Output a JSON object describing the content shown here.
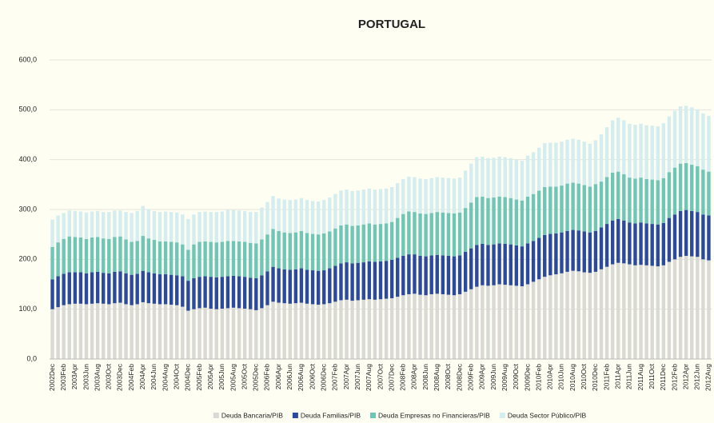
{
  "chart_data": {
    "type": "stacked_bar",
    "title": "PORTUGAL",
    "categories": [
      "2002Dec",
      null,
      "2003Feb",
      null,
      "2003Apr",
      null,
      "2003Jun",
      null,
      "2003Aug",
      null,
      "2003Oct",
      null,
      "2003Dec",
      null,
      "2004Feb",
      null,
      "2004Apr",
      null,
      "2004Jun",
      null,
      "2004Aug",
      null,
      "2004Oct",
      null,
      "2004Dec",
      null,
      "2005Feb",
      null,
      "2005Apr",
      null,
      "2005Jun",
      null,
      "2005Aug",
      null,
      "2005Oct",
      null,
      "2005Dec",
      null,
      "2006Feb",
      null,
      "2006Apr",
      null,
      "2006Jun",
      null,
      "2006Aug",
      null,
      "2006Oct",
      null,
      "2006Dec",
      null,
      "2007Feb",
      null,
      "2007Apr",
      null,
      "2007Jun",
      null,
      "2007Aug",
      null,
      "2007Oct",
      null,
      "2007Dec",
      null,
      "2008Feb",
      null,
      "2008Apr",
      null,
      "2008Jun",
      null,
      "2008Aug",
      null,
      "2008Oct",
      null,
      "2008Dec",
      null,
      "2009Feb",
      null,
      "2009Apr",
      null,
      "2009Jun",
      null,
      "2009Aug",
      null,
      "2009Oct",
      null,
      "2009Dec",
      null,
      "2010Feb",
      null,
      "2010Apr",
      null,
      "2010Jun",
      null,
      "2010Aug",
      null,
      "2010Oct",
      null,
      "2010Dec",
      null,
      "2011Feb",
      null,
      "2011Apr",
      null,
      "2011Jun",
      null,
      "2011Aug",
      null,
      "2011Oct",
      null,
      "2011Dec",
      null,
      "2012Feb",
      null,
      "2012Apr",
      null,
      "2012Jun",
      null,
      "2012Aug"
    ],
    "series": [
      {
        "name": "Deuda Bancaria/PIB",
        "color": "#d9d9d6",
        "values": [
          100,
          104,
          108,
          110,
          111,
          111,
          110,
          111,
          112,
          111,
          110,
          112,
          113,
          110,
          108,
          110,
          114,
          112,
          111,
          110,
          110,
          109,
          108,
          105,
          97,
          100,
          102,
          103,
          101,
          100,
          101,
          102,
          103,
          102,
          101,
          100,
          98,
          102,
          108,
          115,
          113,
          112,
          111,
          112,
          113,
          111,
          110,
          109,
          110,
          112,
          115,
          118,
          119,
          117,
          118,
          119,
          120,
          119,
          120,
          121,
          122,
          125,
          128,
          130,
          131,
          129,
          128,
          130,
          131,
          130,
          129,
          128,
          130,
          135,
          140,
          145,
          148,
          147,
          148,
          150,
          149,
          148,
          147,
          146,
          150,
          155,
          160,
          165,
          168,
          170,
          172,
          175,
          177,
          176,
          174,
          173,
          175,
          180,
          185,
          190,
          193,
          192,
          190,
          188,
          189,
          188,
          187,
          186,
          188,
          195,
          200,
          205,
          207,
          206,
          205,
          200,
          198
        ]
      },
      {
        "name": "Deuda Familias/PIB",
        "color": "#2b4a9e",
        "values": [
          60,
          62,
          63,
          64,
          63,
          63,
          62,
          63,
          63,
          62,
          62,
          63,
          63,
          62,
          61,
          61,
          63,
          62,
          61,
          60,
          60,
          60,
          60,
          61,
          60,
          62,
          63,
          63,
          64,
          64,
          64,
          64,
          64,
          64,
          64,
          63,
          64,
          66,
          68,
          70,
          69,
          68,
          68,
          68,
          69,
          68,
          68,
          68,
          68,
          70,
          72,
          74,
          75,
          75,
          75,
          75,
          76,
          76,
          76,
          76,
          77,
          78,
          79,
          80,
          79,
          78,
          78,
          78,
          78,
          78,
          78,
          78,
          78,
          80,
          82,
          84,
          83,
          82,
          82,
          82,
          82,
          82,
          81,
          80,
          82,
          82,
          83,
          84,
          83,
          82,
          82,
          82,
          82,
          82,
          82,
          81,
          82,
          84,
          86,
          88,
          88,
          86,
          84,
          84,
          85,
          84,
          84,
          84,
          85,
          88,
          90,
          92,
          92,
          91,
          90,
          90,
          90
        ]
      },
      {
        "name": "Deuda Empresas no Financieras/PIB",
        "color": "#6ec6b6",
        "values": [
          65,
          68,
          70,
          72,
          71,
          70,
          69,
          70,
          70,
          69,
          69,
          70,
          70,
          68,
          66,
          66,
          70,
          68,
          67,
          66,
          66,
          66,
          66,
          64,
          62,
          68,
          70,
          70,
          70,
          70,
          70,
          71,
          70,
          70,
          70,
          70,
          70,
          72,
          74,
          76,
          75,
          74,
          74,
          74,
          75,
          74,
          73,
          73,
          74,
          74,
          75,
          76,
          76,
          75,
          75,
          76,
          76,
          75,
          75,
          75,
          76,
          80,
          84,
          86,
          85,
          85,
          85,
          85,
          86,
          86,
          86,
          86,
          86,
          88,
          92,
          96,
          95,
          94,
          94,
          94,
          94,
          93,
          92,
          92,
          94,
          94,
          95,
          96,
          95,
          94,
          94,
          95,
          95,
          94,
          93,
          92,
          94,
          92,
          94,
          96,
          95,
          93,
          90,
          90,
          90,
          89,
          89,
          89,
          90,
          92,
          94,
          95,
          94,
          93,
          92,
          90,
          88
        ]
      },
      {
        "name": "Deuda Sector Público/PIB",
        "color": "#d4edef",
        "values": [
          55,
          54,
          52,
          52,
          52,
          52,
          53,
          52,
          52,
          53,
          54,
          53,
          52,
          55,
          58,
          60,
          60,
          59,
          58,
          59,
          60,
          60,
          60,
          60,
          62,
          60,
          60,
          60,
          60,
          61,
          61,
          62,
          62,
          62,
          62,
          62,
          63,
          64,
          65,
          66,
          65,
          66,
          66,
          66,
          66,
          66,
          66,
          66,
          67,
          68,
          69,
          70,
          70,
          70,
          70,
          70,
          70,
          70,
          70,
          70,
          70,
          70,
          70,
          70,
          70,
          70,
          70,
          70,
          70,
          70,
          70,
          70,
          70,
          75,
          78,
          80,
          80,
          80,
          80,
          80,
          80,
          80,
          80,
          80,
          82,
          84,
          86,
          88,
          88,
          88,
          88,
          88,
          88,
          88,
          87,
          86,
          88,
          95,
          100,
          105,
          108,
          108,
          108,
          108,
          108,
          108,
          108,
          108,
          110,
          112,
          114,
          115,
          115,
          115,
          114,
          113,
          112
        ]
      }
    ],
    "ylim": [
      0,
      600
    ],
    "yticks": [
      {
        "value": 0,
        "label": "0,0"
      },
      {
        "value": 100,
        "label": "100,0"
      },
      {
        "value": 200,
        "label": "200,0"
      },
      {
        "value": 300,
        "label": "300,0"
      },
      {
        "value": 400,
        "label": "400,0"
      },
      {
        "value": 500,
        "label": "500,0"
      },
      {
        "value": 600,
        "label": "600,0"
      }
    ],
    "grid": true,
    "legend": "bottom"
  }
}
